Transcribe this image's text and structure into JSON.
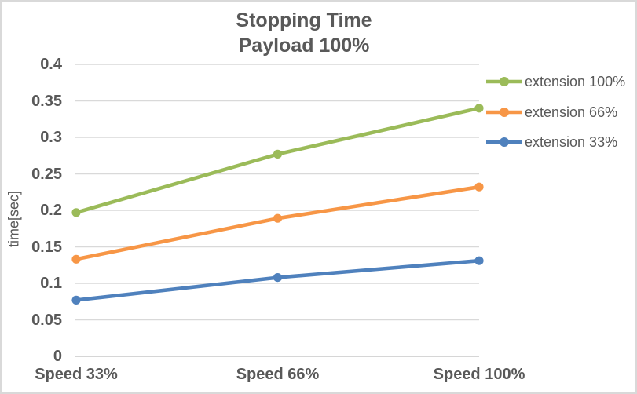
{
  "chart_data": {
    "type": "line",
    "title_lines": [
      "Stopping Time",
      "Payload 100%"
    ],
    "ylabel": "time[sec]",
    "xlabel": "",
    "categories": [
      "Speed 33%",
      "Speed 66%",
      "Speed 100%"
    ],
    "series": [
      {
        "name": "extension 100%",
        "color": "#9BBB59",
        "values": [
          0.197,
          0.277,
          0.34
        ]
      },
      {
        "name": "extension 66%",
        "color": "#F79646",
        "values": [
          0.133,
          0.189,
          0.232
        ]
      },
      {
        "name": "extension 33%",
        "color": "#4F81BD",
        "values": [
          0.077,
          0.108,
          0.131
        ]
      }
    ],
    "ylim": [
      0,
      0.4
    ],
    "y_tick_labels": [
      "0",
      "0.05",
      "0.1",
      "0.15",
      "0.2",
      "0.25",
      "0.3",
      "0.35",
      "0.4"
    ],
    "grid": true,
    "legend_position": "right",
    "marker": "circle"
  },
  "colors": {
    "text": "#595959",
    "gridline": "#D9D9D9",
    "axis_line": "#C9C9C9",
    "background": "#FFFFFF",
    "border": "#D9D9D9"
  }
}
